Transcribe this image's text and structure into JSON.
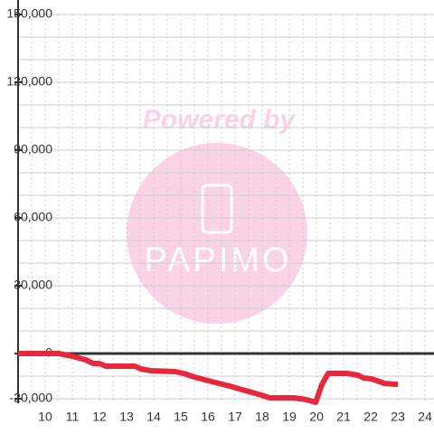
{
  "chart_data": {
    "type": "line",
    "watermark": {
      "caption": "Powered by",
      "logo": "PAPIMO"
    },
    "x": [
      9.0,
      10.5,
      11.0,
      11.5,
      11.77,
      12.0,
      12.23,
      13.3,
      13.53,
      13.9,
      14.8,
      15.1,
      15.5,
      16.0,
      16.8,
      17.03,
      17.97,
      18.27,
      19.17,
      19.63,
      19.97,
      20.2,
      20.43,
      21.13,
      21.53,
      21.73,
      22.03,
      22.5,
      22.9,
      23.0
    ],
    "series": [
      {
        "color": "#e8263c",
        "values": [
          0,
          0,
          -1200,
          -2800,
          -4400,
          -4400,
          -5600,
          -5600,
          -6800,
          -7600,
          -8000,
          -8800,
          -10400,
          -12000,
          -14400,
          -15200,
          -18400,
          -19600,
          -19600,
          -20400,
          -21600,
          -13600,
          -8800,
          -8800,
          -9600,
          -10800,
          -11200,
          -13200,
          -13600,
          -13600
        ]
      }
    ],
    "xlim": [
      9,
      24.33
    ],
    "xticks": [
      10,
      11,
      12,
      13,
      14,
      15,
      16,
      17,
      18,
      19,
      20,
      21,
      22,
      23,
      24
    ],
    "x_minor_ticks": [
      9.5,
      10.5,
      11.5,
      12.5,
      13.5,
      14.5,
      15.5,
      16.5,
      17.5,
      18.5,
      19.5,
      20.5,
      21.5,
      22.5,
      23.5
    ],
    "ylim": [
      -22000,
      150000
    ],
    "yticks": [
      {
        "value": -20000,
        "label": "-20,000"
      },
      0,
      {
        "value": 30000,
        "label": "30,000"
      },
      {
        "value": 60000,
        "label": "60,000"
      },
      {
        "value": 90000,
        "label": "90,000"
      },
      {
        "value": 120000,
        "label": "120,000"
      },
      {
        "value": 150000,
        "label": "150,000"
      }
    ],
    "y_minor_ticks": [
      -10000,
      10000,
      20000,
      40000,
      50000,
      70000,
      80000,
      100000,
      110000,
      130000,
      140000
    ],
    "grid": true
  }
}
